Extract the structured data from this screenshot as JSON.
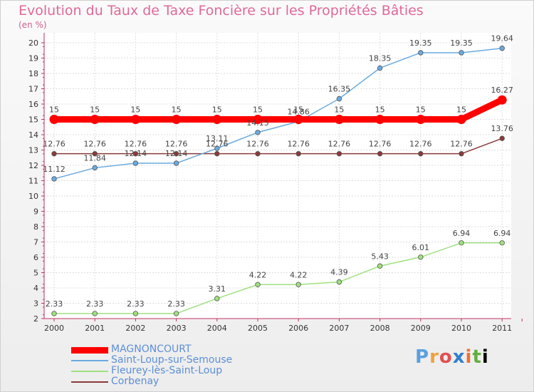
{
  "chart_data": {
    "type": "line",
    "title": "Evolution du Taux de Taxe Foncière sur les Propriétés Bâties",
    "unit_label": "(en %)",
    "x": [
      "2000",
      "2001",
      "2002",
      "2003",
      "2004",
      "2005",
      "2006",
      "2007",
      "2008",
      "2009",
      "2010",
      "2011"
    ],
    "ylim": [
      2,
      20
    ],
    "yticks": [
      "2",
      "3",
      "4",
      "5",
      "6",
      "7",
      "8",
      "9",
      "10",
      "11",
      "12",
      "13",
      "14",
      "15",
      "16",
      "17",
      "18",
      "19",
      "20"
    ],
    "grid": true,
    "series": [
      {
        "name": "MAGNONCOURT",
        "color": "#ff0000",
        "values": [
          15,
          15,
          15,
          15,
          15,
          15,
          15,
          15,
          15,
          15,
          15,
          16.27
        ],
        "labels": [
          "15",
          "15",
          "15",
          "15",
          "15",
          "15",
          "15",
          "15",
          "15",
          "15",
          "15",
          "16.27"
        ]
      },
      {
        "name": "Saint-Loup-sur-Semouse",
        "color": "#6aaae0",
        "values": [
          11.12,
          11.84,
          12.14,
          12.14,
          13.11,
          14.15,
          14.86,
          16.35,
          18.35,
          19.35,
          19.35,
          19.64
        ],
        "labels": [
          "11.12",
          "11.84",
          "12.14",
          "12.14",
          "13.11",
          "14.15",
          "14.86",
          "16.35",
          "18.35",
          "19.35",
          "19.35",
          "19.64"
        ]
      },
      {
        "name": "Fleurey-lès-Saint-Loup",
        "color": "#a0e080",
        "values": [
          2.33,
          2.33,
          2.33,
          2.33,
          3.31,
          4.22,
          4.22,
          4.39,
          5.43,
          6.01,
          6.94,
          6.94
        ],
        "labels": [
          "2.33",
          "2.33",
          "2.33",
          "2.33",
          "3.31",
          "4.22",
          "4.22",
          "4.39",
          "5.43",
          "6.01",
          "6.94",
          "6.94"
        ]
      },
      {
        "name": "Corbenay",
        "color": "#8a3a3a",
        "values": [
          12.76,
          12.76,
          12.76,
          12.76,
          12.76,
          12.76,
          12.76,
          12.76,
          12.76,
          12.76,
          12.76,
          13.76
        ],
        "labels": [
          "12.76",
          "12.76",
          "12.76",
          "12.76",
          "12.76",
          "12.76",
          "12.76",
          "12.76",
          "12.76",
          "12.76",
          "12.76",
          "13.76"
        ]
      }
    ]
  },
  "legend": [
    {
      "label": "MAGNONCOURT",
      "color": "#ff0000"
    },
    {
      "label": "Saint-Loup-sur-Semouse",
      "color": "#6aaae0"
    },
    {
      "label": "Fleurey-lès-Saint-Loup",
      "color": "#a0e080"
    },
    {
      "label": "Corbenay",
      "color": "#8a3a3a"
    }
  ],
  "logo": {
    "letters": [
      "P",
      "r",
      "o",
      "x",
      "i",
      "t",
      "i"
    ]
  }
}
